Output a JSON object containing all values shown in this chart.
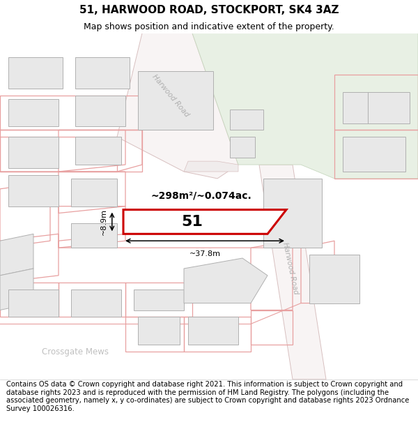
{
  "title": "51, HARWOOD ROAD, STOCKPORT, SK4 3AZ",
  "subtitle": "Map shows position and indicative extent of the property.",
  "footer": "Contains OS data © Crown copyright and database right 2021. This information is subject to Crown copyright and database rights 2023 and is reproduced with the permission of HM Land Registry. The polygons (including the associated geometry, namely x, y co-ordinates) are subject to Crown copyright and database rights 2023 Ordnance Survey 100026316.",
  "map_bg": "#ffffff",
  "building_fill": "#e8e8e8",
  "building_stroke": "#b0b0b0",
  "parcel_stroke": "#e8a0a0",
  "green_fill": "#e8f0e4",
  "green_stroke": "#c8d8c0",
  "road_fill": "#ffffff",
  "road_stroke_color": "#d8c0c0",
  "road_label_color": "#b0b0b0",
  "crossgate_color": "#c0c0c0",
  "target_color": "#cc0000",
  "target_fill": "#ffffff",
  "target_label": "51",
  "area_label": "~298m²/~0.074ac.",
  "width_label": "~37.8m",
  "height_label": "~8.9m",
  "road_label": "Harwood Road",
  "crossgate_label": "Crossgate Mews",
  "title_fontsize": 11,
  "subtitle_fontsize": 9,
  "footer_fontsize": 7.2
}
